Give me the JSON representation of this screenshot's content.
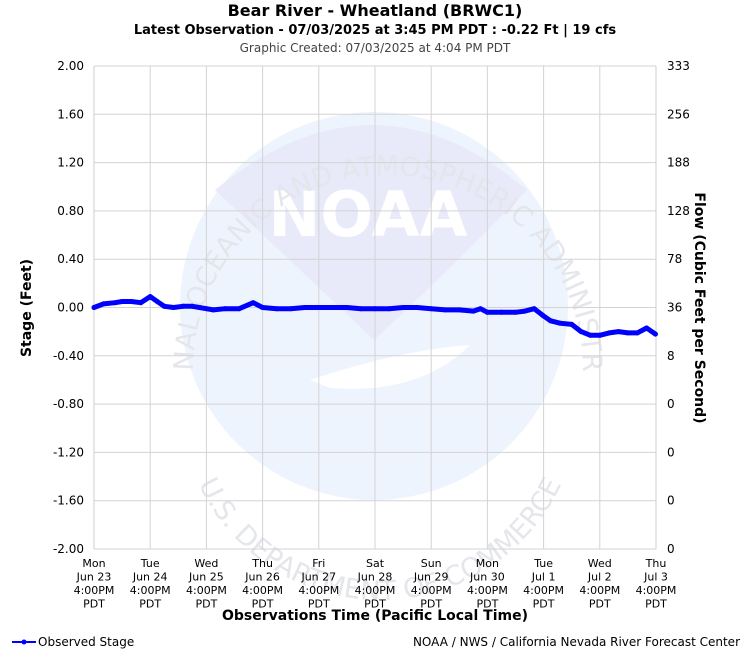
{
  "header": {
    "title": "Bear River - Wheatland (BRWC1)",
    "subtitle": "Latest Observation - 07/03/2025 at 3:45 PM PDT : -0.22 Ft | 19 cfs",
    "created": "Graphic Created: 07/03/2025 at 4:04 PM PDT"
  },
  "watermark": {
    "top_text": "NATIONAL OCEANIC AND ATMOSPHERIC ADMINISTRATION",
    "bottom_text": "U.S. DEPARTMENT OF COMMERCE",
    "logo_text": "NOAA"
  },
  "footer": {
    "legend_label": "Observed Stage",
    "credit": "NOAA / NWS / California Nevada River Forecast Center"
  },
  "colors": {
    "series": "#0000ff",
    "grid": "#d3d3d3",
    "watermark_dark": "#e8e9f9",
    "watermark_light": "#eef4fd"
  },
  "chart_data": {
    "type": "line",
    "title": "Bear River - Wheatland (BRWC1)",
    "xlabel": "Observations Time (Pacific Local Time)",
    "ylabel": "Stage (Feet)",
    "y2label": "Flow (Cubic Feet per Second)",
    "ylim": [
      -2.0,
      2.0
    ],
    "xlim": [
      "2025-06-23 16:00",
      "2025-07-03 16:00"
    ],
    "grid": true,
    "legend_position": "bottom-left",
    "y_ticks": [
      "2.00",
      "1.60",
      "1.20",
      "0.80",
      "0.40",
      "0.00",
      "-0.40",
      "-0.80",
      "-1.20",
      "-1.60",
      "-2.00"
    ],
    "y2_ticks": [
      "333",
      "256",
      "188",
      "128",
      "78",
      "36",
      "8",
      "0",
      "0",
      "0",
      "0"
    ],
    "x_ticks": [
      {
        "day": "Mon",
        "date": "Jun 23",
        "time": "4:00PM",
        "tz": "PDT"
      },
      {
        "day": "Tue",
        "date": "Jun 24",
        "time": "4:00PM",
        "tz": "PDT"
      },
      {
        "day": "Wed",
        "date": "Jun 25",
        "time": "4:00PM",
        "tz": "PDT"
      },
      {
        "day": "Thu",
        "date": "Jun 26",
        "time": "4:00PM",
        "tz": "PDT"
      },
      {
        "day": "Fri",
        "date": "Jun 27",
        "time": "4:00PM",
        "tz": "PDT"
      },
      {
        "day": "Sat",
        "date": "Jun 28",
        "time": "4:00PM",
        "tz": "PDT"
      },
      {
        "day": "Sun",
        "date": "Jun 29",
        "time": "4:00PM",
        "tz": "PDT"
      },
      {
        "day": "Mon",
        "date": "Jun 30",
        "time": "4:00PM",
        "tz": "PDT"
      },
      {
        "day": "Tue",
        "date": "Jul 1",
        "time": "4:00PM",
        "tz": "PDT"
      },
      {
        "day": "Wed",
        "date": "Jul 2",
        "time": "4:00PM",
        "tz": "PDT"
      },
      {
        "day": "Thu",
        "date": "Jul 3",
        "time": "4:00PM",
        "tz": "PDT"
      }
    ],
    "series": [
      {
        "name": "Observed Stage",
        "points": [
          [
            "2025-06-23 16:00",
            0.0
          ],
          [
            "2025-06-23 20:00",
            0.03
          ],
          [
            "2025-06-24 01:00",
            0.04
          ],
          [
            "2025-06-24 04:00",
            0.05
          ],
          [
            "2025-06-24 08:00",
            0.05
          ],
          [
            "2025-06-24 12:00",
            0.04
          ],
          [
            "2025-06-24 16:00",
            0.09
          ],
          [
            "2025-06-24 19:00",
            0.05
          ],
          [
            "2025-06-24 22:00",
            0.01
          ],
          [
            "2025-06-25 02:00",
            0.0
          ],
          [
            "2025-06-25 06:00",
            0.01
          ],
          [
            "2025-06-25 10:00",
            0.01
          ],
          [
            "2025-06-25 13:00",
            0.0
          ],
          [
            "2025-06-25 16:00",
            -0.01
          ],
          [
            "2025-06-25 19:00",
            -0.02
          ],
          [
            "2025-06-26 00:00",
            -0.01
          ],
          [
            "2025-06-26 06:00",
            -0.01
          ],
          [
            "2025-06-26 12:00",
            0.04
          ],
          [
            "2025-06-26 16:00",
            0.0
          ],
          [
            "2025-06-26 22:00",
            -0.01
          ],
          [
            "2025-06-27 04:00",
            -0.01
          ],
          [
            "2025-06-27 10:00",
            0.0
          ],
          [
            "2025-06-27 16:00",
            0.0
          ],
          [
            "2025-06-27 22:00",
            0.0
          ],
          [
            "2025-06-28 04:00",
            0.0
          ],
          [
            "2025-06-28 10:00",
            -0.01
          ],
          [
            "2025-06-28 16:00",
            -0.01
          ],
          [
            "2025-06-28 22:00",
            -0.01
          ],
          [
            "2025-06-29 04:00",
            0.0
          ],
          [
            "2025-06-29 10:00",
            0.0
          ],
          [
            "2025-06-29 16:00",
            -0.01
          ],
          [
            "2025-06-29 22:00",
            -0.02
          ],
          [
            "2025-06-30 04:00",
            -0.02
          ],
          [
            "2025-06-30 10:00",
            -0.03
          ],
          [
            "2025-06-30 13:00",
            -0.01
          ],
          [
            "2025-06-30 16:00",
            -0.04
          ],
          [
            "2025-06-30 22:00",
            -0.04
          ],
          [
            "2025-07-01 04:00",
            -0.04
          ],
          [
            "2025-07-01 08:00",
            -0.03
          ],
          [
            "2025-07-01 12:00",
            -0.01
          ],
          [
            "2025-07-01 16:00",
            -0.07
          ],
          [
            "2025-07-01 19:00",
            -0.11
          ],
          [
            "2025-07-01 23:00",
            -0.13
          ],
          [
            "2025-07-02 04:00",
            -0.14
          ],
          [
            "2025-07-02 08:00",
            -0.2
          ],
          [
            "2025-07-02 12:00",
            -0.23
          ],
          [
            "2025-07-02 16:00",
            -0.23
          ],
          [
            "2025-07-02 20:00",
            -0.21
          ],
          [
            "2025-07-03 00:00",
            -0.2
          ],
          [
            "2025-07-03 04:00",
            -0.21
          ],
          [
            "2025-07-03 08:00",
            -0.21
          ],
          [
            "2025-07-03 12:00",
            -0.17
          ],
          [
            "2025-07-03 15:45",
            -0.22
          ]
        ]
      }
    ]
  }
}
